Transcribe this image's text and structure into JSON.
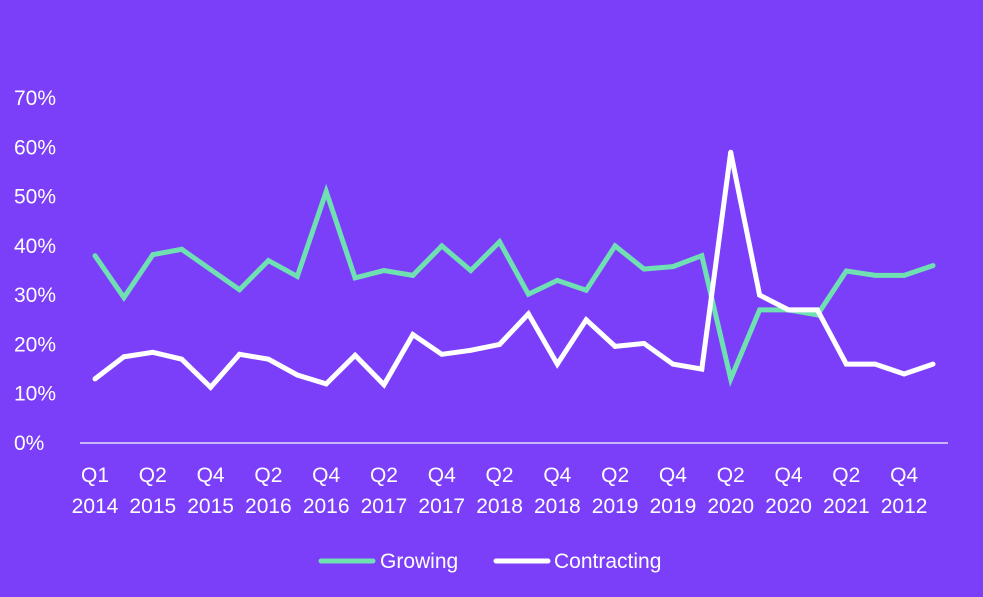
{
  "chart_data": {
    "type": "line",
    "ylim": [
      0,
      70
    ],
    "y_ticks": [
      "0%",
      "10%",
      "20%",
      "30%",
      "40%",
      "50%",
      "60%",
      "70%"
    ],
    "y_tick_values": [
      0,
      10,
      20,
      30,
      40,
      50,
      60,
      70
    ],
    "x_tick_labels": [
      {
        "q": "Q1",
        "y": "2014"
      },
      {
        "q": "Q2",
        "y": "2015"
      },
      {
        "q": "Q4",
        "y": "2015"
      },
      {
        "q": "Q2",
        "y": "2016"
      },
      {
        "q": "Q4",
        "y": "2016"
      },
      {
        "q": "Q2",
        "y": "2017"
      },
      {
        "q": "Q4",
        "y": "2017"
      },
      {
        "q": "Q2",
        "y": "2018"
      },
      {
        "q": "Q4",
        "y": "2018"
      },
      {
        "q": "Q2",
        "y": "2019"
      },
      {
        "q": "Q4",
        "y": "2019"
      },
      {
        "q": "Q2",
        "y": "2020"
      },
      {
        "q": "Q4",
        "y": "2020"
      },
      {
        "q": "Q2",
        "y": "2021"
      },
      {
        "q": "Q4",
        "y": "2012"
      }
    ],
    "grid": false,
    "legend_position": "bottom-center",
    "series": [
      {
        "name": "Growing",
        "color": "#6fe0b1",
        "values": [
          38,
          29.5,
          38.2,
          39.3,
          35.2,
          31.1,
          37,
          33.8,
          51,
          33.5,
          35,
          34,
          40,
          35,
          40.8,
          30.2,
          33,
          31,
          40,
          35.3,
          35.8,
          38,
          13,
          27,
          27,
          26,
          34.9,
          34,
          34,
          36
        ]
      },
      {
        "name": "Contracting",
        "color": "#ffffff",
        "values": [
          13,
          17.5,
          18.4,
          17,
          11.3,
          18,
          17,
          13.8,
          12,
          17.8,
          11.8,
          22,
          18,
          18.8,
          20,
          26.2,
          16,
          25,
          19.6,
          20.2,
          16,
          15,
          59,
          30,
          27,
          27,
          16,
          16,
          14,
          16
        ]
      }
    ]
  }
}
